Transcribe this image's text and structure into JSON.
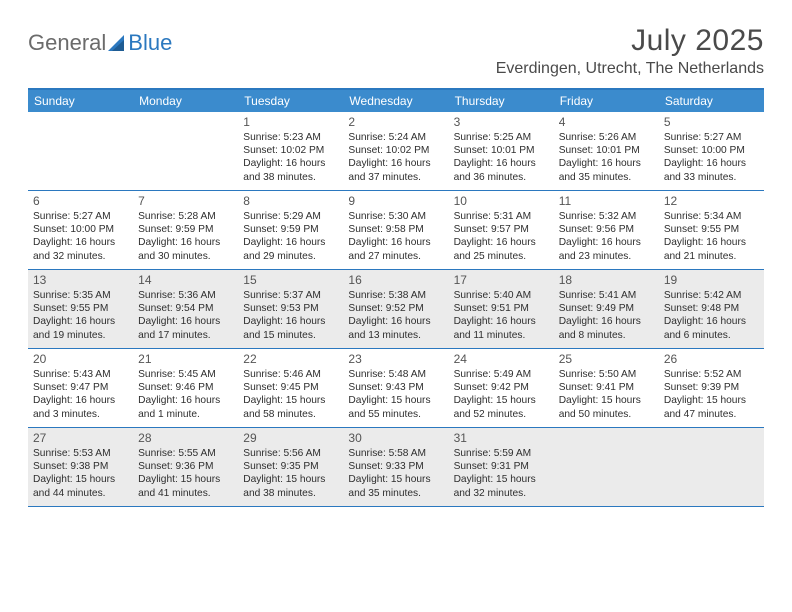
{
  "brand": {
    "part1": "General",
    "part2": "Blue"
  },
  "title": "July 2025",
  "location": "Everdingen, Utrecht, The Netherlands",
  "colors": {
    "header_bg": "#3b8bcd",
    "border": "#2b78bf",
    "shaded": "#ebebeb",
    "text": "#333333",
    "title_text": "#4a4a4a"
  },
  "weekdays": [
    "Sunday",
    "Monday",
    "Tuesday",
    "Wednesday",
    "Thursday",
    "Friday",
    "Saturday"
  ],
  "weeks": [
    {
      "shaded": false,
      "days": [
        null,
        null,
        {
          "n": "1",
          "sunrise": "5:23 AM",
          "sunset": "10:02 PM",
          "daylight": "16 hours and 38 minutes."
        },
        {
          "n": "2",
          "sunrise": "5:24 AM",
          "sunset": "10:02 PM",
          "daylight": "16 hours and 37 minutes."
        },
        {
          "n": "3",
          "sunrise": "5:25 AM",
          "sunset": "10:01 PM",
          "daylight": "16 hours and 36 minutes."
        },
        {
          "n": "4",
          "sunrise": "5:26 AM",
          "sunset": "10:01 PM",
          "daylight": "16 hours and 35 minutes."
        },
        {
          "n": "5",
          "sunrise": "5:27 AM",
          "sunset": "10:00 PM",
          "daylight": "16 hours and 33 minutes."
        }
      ]
    },
    {
      "shaded": false,
      "days": [
        {
          "n": "6",
          "sunrise": "5:27 AM",
          "sunset": "10:00 PM",
          "daylight": "16 hours and 32 minutes."
        },
        {
          "n": "7",
          "sunrise": "5:28 AM",
          "sunset": "9:59 PM",
          "daylight": "16 hours and 30 minutes."
        },
        {
          "n": "8",
          "sunrise": "5:29 AM",
          "sunset": "9:59 PM",
          "daylight": "16 hours and 29 minutes."
        },
        {
          "n": "9",
          "sunrise": "5:30 AM",
          "sunset": "9:58 PM",
          "daylight": "16 hours and 27 minutes."
        },
        {
          "n": "10",
          "sunrise": "5:31 AM",
          "sunset": "9:57 PM",
          "daylight": "16 hours and 25 minutes."
        },
        {
          "n": "11",
          "sunrise": "5:32 AM",
          "sunset": "9:56 PM",
          "daylight": "16 hours and 23 minutes."
        },
        {
          "n": "12",
          "sunrise": "5:34 AM",
          "sunset": "9:55 PM",
          "daylight": "16 hours and 21 minutes."
        }
      ]
    },
    {
      "shaded": true,
      "days": [
        {
          "n": "13",
          "sunrise": "5:35 AM",
          "sunset": "9:55 PM",
          "daylight": "16 hours and 19 minutes."
        },
        {
          "n": "14",
          "sunrise": "5:36 AM",
          "sunset": "9:54 PM",
          "daylight": "16 hours and 17 minutes."
        },
        {
          "n": "15",
          "sunrise": "5:37 AM",
          "sunset": "9:53 PM",
          "daylight": "16 hours and 15 minutes."
        },
        {
          "n": "16",
          "sunrise": "5:38 AM",
          "sunset": "9:52 PM",
          "daylight": "16 hours and 13 minutes."
        },
        {
          "n": "17",
          "sunrise": "5:40 AM",
          "sunset": "9:51 PM",
          "daylight": "16 hours and 11 minutes."
        },
        {
          "n": "18",
          "sunrise": "5:41 AM",
          "sunset": "9:49 PM",
          "daylight": "16 hours and 8 minutes."
        },
        {
          "n": "19",
          "sunrise": "5:42 AM",
          "sunset": "9:48 PM",
          "daylight": "16 hours and 6 minutes."
        }
      ]
    },
    {
      "shaded": false,
      "days": [
        {
          "n": "20",
          "sunrise": "5:43 AM",
          "sunset": "9:47 PM",
          "daylight": "16 hours and 3 minutes."
        },
        {
          "n": "21",
          "sunrise": "5:45 AM",
          "sunset": "9:46 PM",
          "daylight": "16 hours and 1 minute."
        },
        {
          "n": "22",
          "sunrise": "5:46 AM",
          "sunset": "9:45 PM",
          "daylight": "15 hours and 58 minutes."
        },
        {
          "n": "23",
          "sunrise": "5:48 AM",
          "sunset": "9:43 PM",
          "daylight": "15 hours and 55 minutes."
        },
        {
          "n": "24",
          "sunrise": "5:49 AM",
          "sunset": "9:42 PM",
          "daylight": "15 hours and 52 minutes."
        },
        {
          "n": "25",
          "sunrise": "5:50 AM",
          "sunset": "9:41 PM",
          "daylight": "15 hours and 50 minutes."
        },
        {
          "n": "26",
          "sunrise": "5:52 AM",
          "sunset": "9:39 PM",
          "daylight": "15 hours and 47 minutes."
        }
      ]
    },
    {
      "shaded": true,
      "days": [
        {
          "n": "27",
          "sunrise": "5:53 AM",
          "sunset": "9:38 PM",
          "daylight": "15 hours and 44 minutes."
        },
        {
          "n": "28",
          "sunrise": "5:55 AM",
          "sunset": "9:36 PM",
          "daylight": "15 hours and 41 minutes."
        },
        {
          "n": "29",
          "sunrise": "5:56 AM",
          "sunset": "9:35 PM",
          "daylight": "15 hours and 38 minutes."
        },
        {
          "n": "30",
          "sunrise": "5:58 AM",
          "sunset": "9:33 PM",
          "daylight": "15 hours and 35 minutes."
        },
        {
          "n": "31",
          "sunrise": "5:59 AM",
          "sunset": "9:31 PM",
          "daylight": "15 hours and 32 minutes."
        },
        null,
        null
      ]
    }
  ]
}
